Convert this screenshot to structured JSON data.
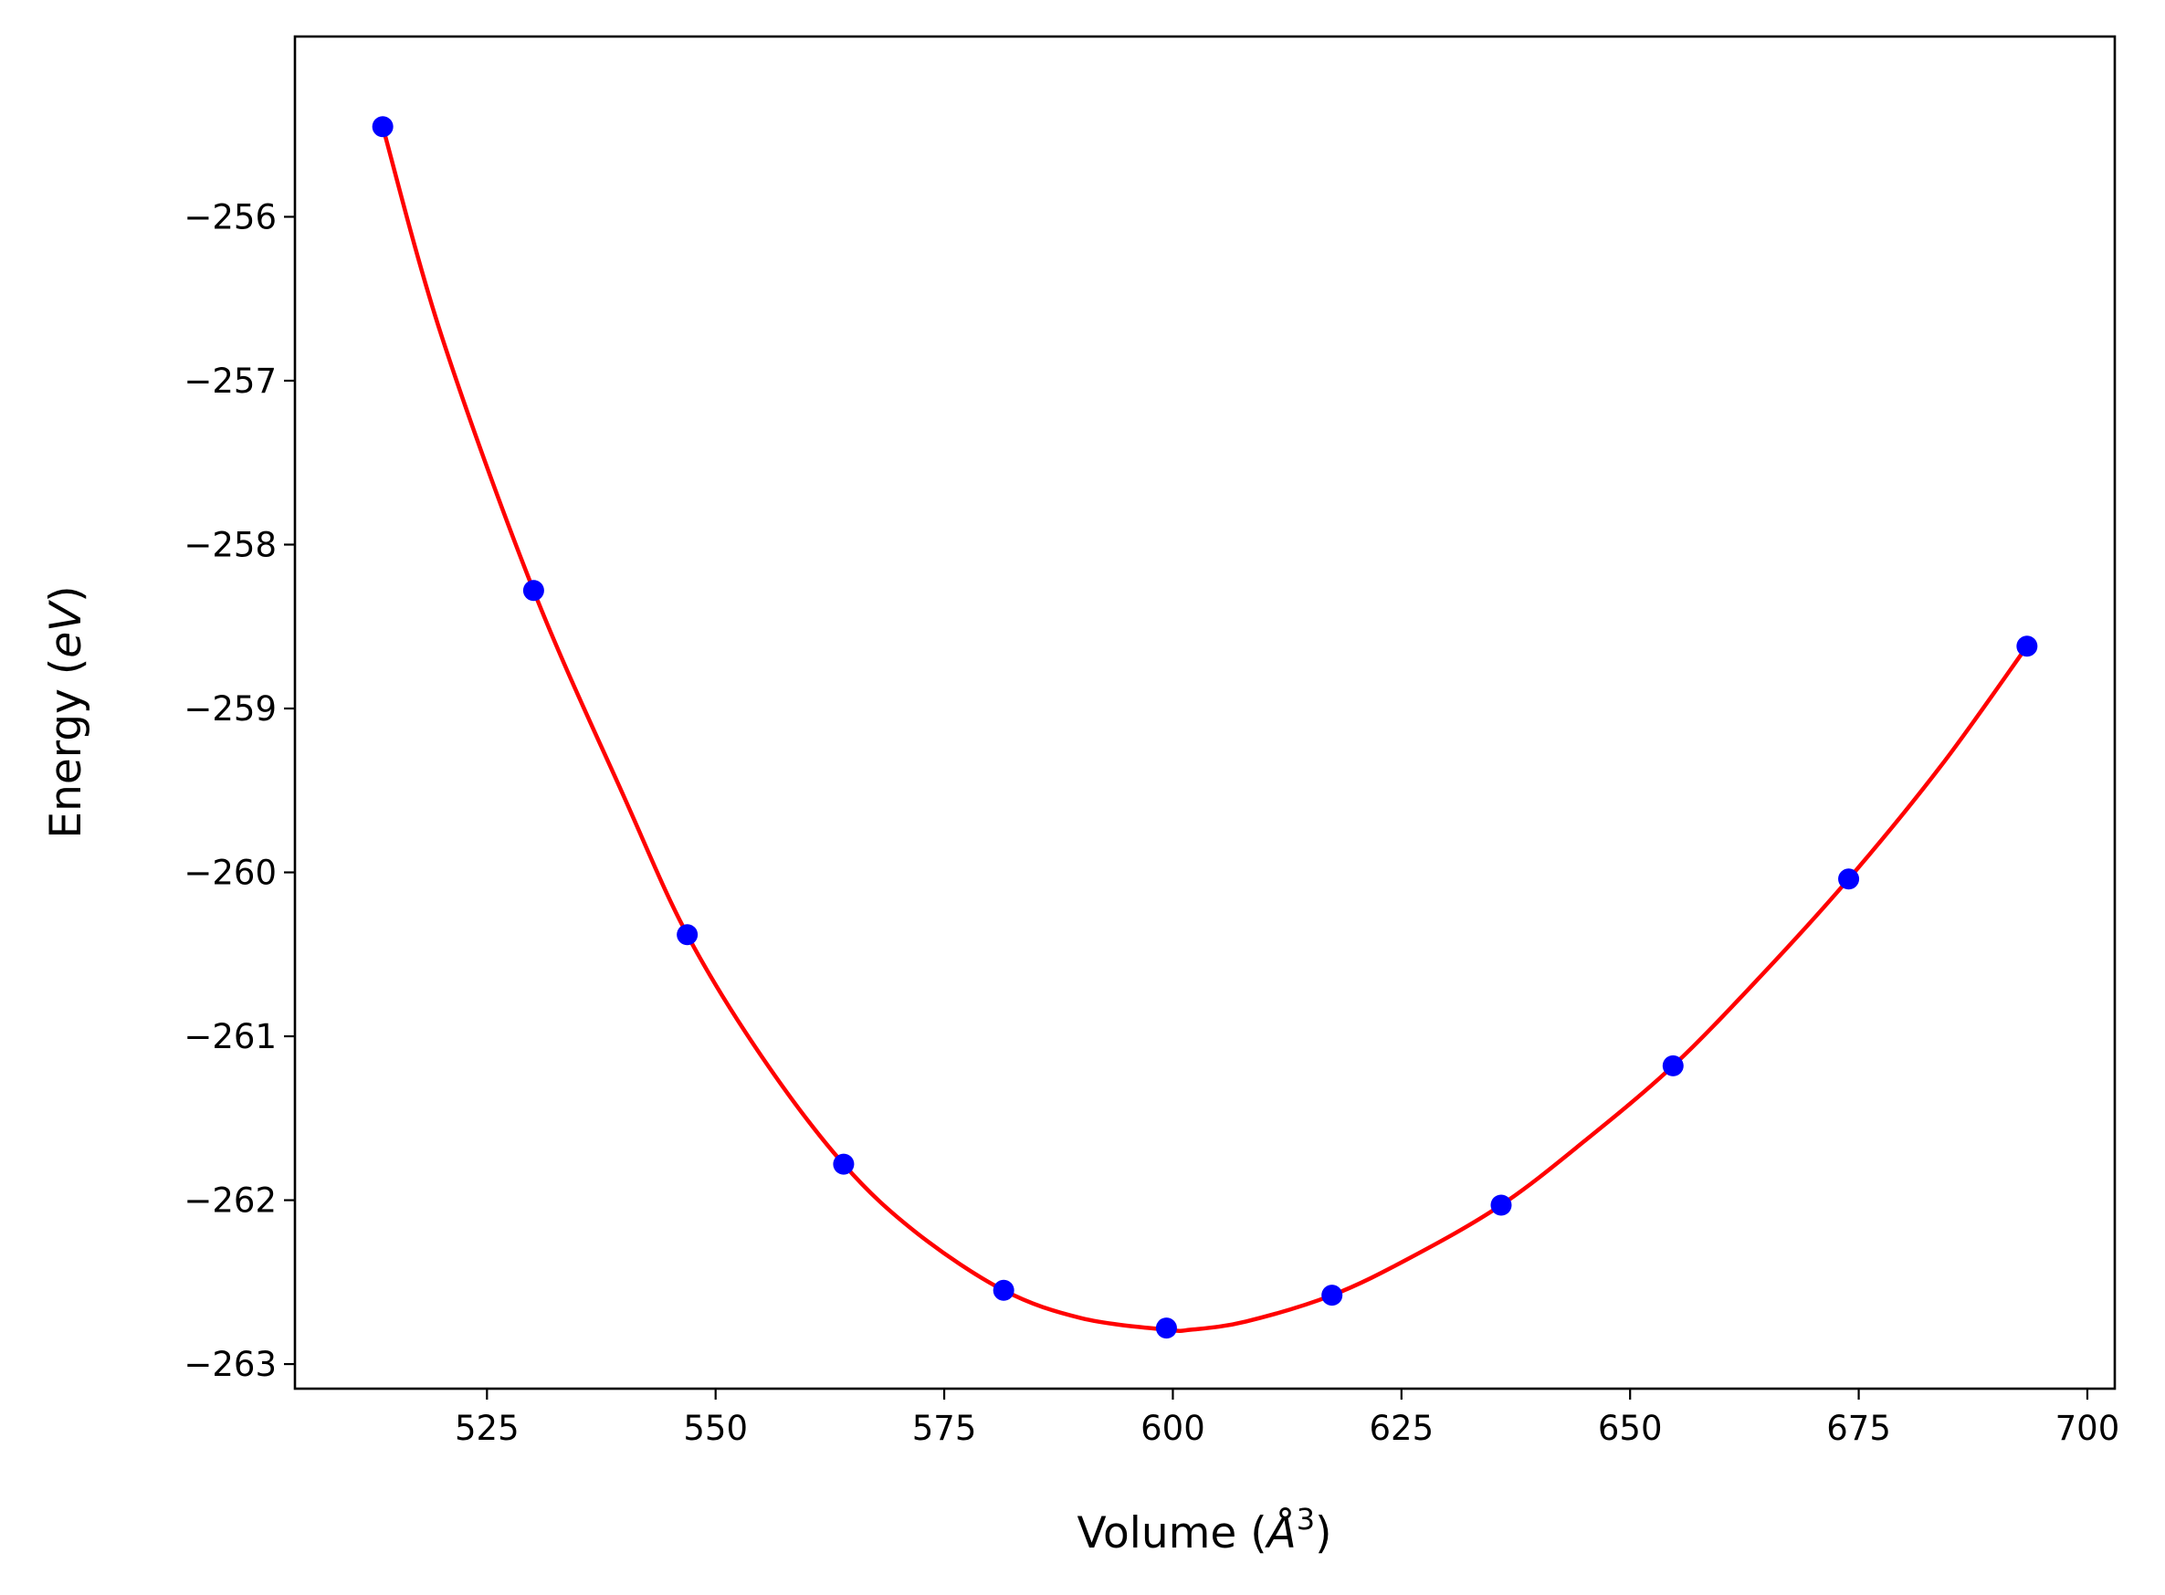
{
  "chart_data": {
    "type": "scatter",
    "xlabel": "Volume (Å³)",
    "ylabel": "Energy (eV)",
    "xlim": [
      504,
      703
    ],
    "ylim": [
      -263.15,
      -254.9
    ],
    "xticks": [
      525,
      550,
      575,
      600,
      625,
      650,
      675,
      700
    ],
    "yticks": [
      -263,
      -262,
      -261,
      -260,
      -259,
      -258,
      -257,
      -256
    ],
    "grid": false,
    "legend": "none",
    "colors": {
      "points": "#0000ff",
      "fit": "#ff0000",
      "axes": "#000000"
    },
    "series": [
      {
        "kind": "points",
        "x": [
          513.6,
          530.1,
          546.9,
          564.0,
          581.5,
          599.3,
          617.4,
          635.9,
          654.7,
          673.9,
          693.4
        ],
        "y": [
          -255.45,
          -258.28,
          -260.38,
          -261.78,
          -262.55,
          -262.78,
          -262.58,
          -262.03,
          -261.18,
          -260.04,
          -258.62
        ]
      },
      {
        "kind": "fit-curve",
        "x": [
          513.6,
          520,
          530.1,
          540,
          546.9,
          555,
          564.0,
          572,
          581.5,
          590,
          599.3,
          602,
          608,
          617.4,
          626,
          635.9,
          645,
          654.7,
          664,
          673.9,
          684,
          693.4
        ],
        "y": [
          -255.45,
          -256.72,
          -258.28,
          -259.54,
          -260.38,
          -261.12,
          -261.78,
          -262.2,
          -262.55,
          -262.72,
          -262.79,
          -262.79,
          -262.74,
          -262.58,
          -262.35,
          -262.03,
          -261.64,
          -261.18,
          -260.65,
          -260.04,
          -259.35,
          -258.62
        ]
      }
    ]
  },
  "labels": {
    "x_prefix": "Volume (",
    "x_symbol": "Å",
    "x_exponent": "3",
    "x_suffix": ")",
    "y_prefix": "Energy (",
    "y_symbol": "eV",
    "y_suffix": ")"
  }
}
